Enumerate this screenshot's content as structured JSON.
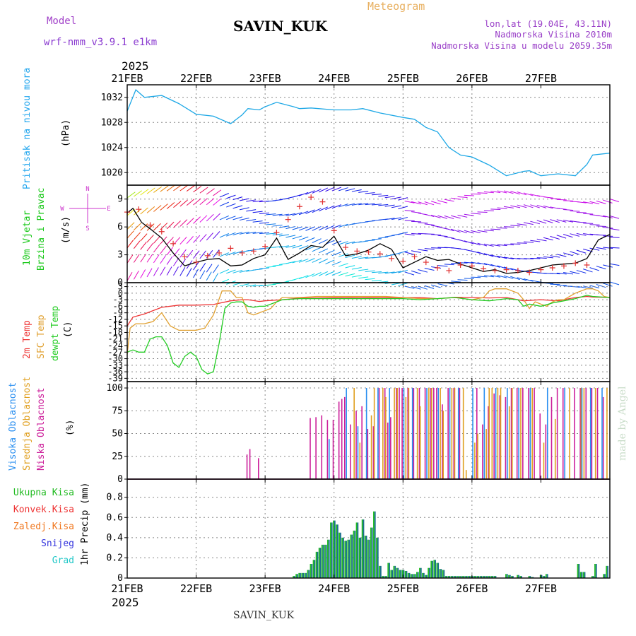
{
  "header": {
    "model_label": "Model",
    "model_name": "wrf-nmm_v3.9.1  e1km",
    "station": "SAVIN_KUK",
    "product": "Meteogram",
    "lonlat": "lon,lat (19.04E, 43.11N)",
    "altitude": "Nadmorska Visina 2010m",
    "altitude_model": "Nadmorska Visina u modelu 2059.35m",
    "footer_station": "SAVIN_KUK",
    "credit": "made by Angel"
  },
  "colors": {
    "pressure": "#1ea8e6",
    "pressure_label": "#22a6ee",
    "wind_speed_line": "#000000",
    "wind_obs_marker": "#e03030",
    "wind_label": "#18c818",
    "wind_dir_legend": "#cc33cc",
    "temp_2m": "#ee3333",
    "temp_sfc": "#e0a030",
    "temp_dew": "#22cc22",
    "cloud_high": "#2a8ff0",
    "cloud_mid": "#e0a020",
    "cloud_low": "#cc1f9a",
    "precip_total": "#22bb22",
    "precip_conv": "#ee3333",
    "precip_frz": "#f07820",
    "precip_snow": "#3333dd",
    "precip_grad": "#22c8c8",
    "axis": "#000000",
    "grid": "#888888"
  },
  "x_axis": {
    "year": "2025",
    "ticks": [
      "21FEB",
      "22FEB",
      "23FEB",
      "24FEB",
      "25FEB",
      "26FEB",
      "27FEB"
    ]
  },
  "labels": {
    "pressure": "Pritisak na nivou mora",
    "pressure_unit": "(hPa)",
    "wind_1": "10m Vjetar",
    "wind_2": "Brzina i Pravac",
    "wind_unit": "(m/s)",
    "wind_compass": [
      "N",
      "W",
      "E",
      "S"
    ],
    "temp_2m": "2m Temp",
    "temp_sfc": "SFC Temp",
    "temp_dew": "dewpt Temp",
    "temp_unit": "(C)",
    "cloud_high": "Visoka Oblacnost",
    "cloud_mid": "Srednja Oblacnost",
    "cloud_low": "Niska Oblacnost",
    "cloud_unit": "(%)",
    "precip_total": "Ukupna Kisa",
    "precip_conv": "Konvek.Kisa",
    "precip_frz": "Zaledj.Kisa",
    "precip_snow": "Snijeg",
    "precip_grad": "Grad",
    "precip_unit": "1hr Precip (mm)"
  },
  "chart_data": [
    {
      "type": "line",
      "panel": "pressure",
      "x_unit": "hours since 21FEB 00",
      "ylim": [
        1018,
        1034
      ],
      "yticks": [
        1020,
        1024,
        1028,
        1032
      ],
      "series": [
        {
          "name": "Pritisak na nivou mora",
          "x": [
            0,
            3,
            6,
            12,
            18,
            24,
            30,
            36,
            40,
            42,
            46,
            48,
            52,
            58,
            60,
            64,
            72,
            78,
            82,
            88,
            96,
            100,
            104,
            108,
            112,
            116,
            120,
            126,
            132,
            138,
            140,
            144,
            150,
            156,
            160,
            162,
            168
          ],
          "values": [
            1029.8,
            1033.2,
            1032.0,
            1032.3,
            1031.0,
            1029.3,
            1029.0,
            1027.8,
            1029.2,
            1030.2,
            1030.0,
            1030.5,
            1031.2,
            1030.5,
            1030.2,
            1030.3,
            1030.0,
            1030.0,
            1030.2,
            1029.5,
            1028.8,
            1028.5,
            1027.2,
            1026.5,
            1024.0,
            1022.8,
            1022.5,
            1021.2,
            1019.5,
            1020.2,
            1020.3,
            1019.5,
            1019.8,
            1019.5,
            1021.3,
            1022.8,
            1023.1
          ]
        }
      ]
    },
    {
      "type": "line",
      "panel": "wind",
      "ylim": [
        0,
        10.5
      ],
      "yticks": [
        0,
        3,
        6,
        9
      ],
      "series": [
        {
          "name": "speed",
          "x": [
            0,
            2,
            5,
            8,
            12,
            16,
            20,
            24,
            28,
            32,
            36,
            40,
            44,
            48,
            52,
            56,
            60,
            64,
            68,
            72,
            76,
            80,
            84,
            88,
            92,
            96,
            100,
            104,
            108,
            112,
            116,
            120,
            124,
            128,
            132,
            136,
            140,
            144,
            148,
            152,
            156,
            160,
            164,
            168
          ],
          "values": [
            7.5,
            8.0,
            6.5,
            5.8,
            4.8,
            3.2,
            1.8,
            2.2,
            2.5,
            2.6,
            1.8,
            1.9,
            2.6,
            3.0,
            4.8,
            2.5,
            3.2,
            4.0,
            3.8,
            5.0,
            2.9,
            3.1,
            3.5,
            4.2,
            3.6,
            1.6,
            2.2,
            2.8,
            2.4,
            2.5,
            2.0,
            1.6,
            1.2,
            1.4,
            1.0,
            1.1,
            1.3,
            1.6,
            1.9,
            2.0,
            2.1,
            2.6,
            4.6,
            5.2
          ]
        },
        {
          "name": "obs",
          "x": [
            0,
            4,
            8,
            12,
            16,
            20,
            24,
            28,
            32,
            36,
            40,
            44,
            48,
            52,
            56,
            60,
            64,
            68,
            72,
            76,
            80,
            84,
            88,
            92,
            96,
            100,
            104,
            108,
            112,
            116,
            120,
            124,
            128,
            132,
            136,
            140,
            144,
            148,
            152,
            156,
            160
          ],
          "values": [
            7.6,
            7.9,
            6.2,
            5.5,
            4.2,
            2.8,
            2.2,
            2.9,
            3.2,
            3.7,
            3.2,
            3.4,
            3.9,
            5.4,
            6.8,
            8.2,
            9.2,
            8.7,
            5.6,
            3.8,
            3.4,
            3.3,
            3.1,
            2.6,
            2.3,
            2.8,
            2.2,
            1.6,
            1.3,
            1.9,
            1.8,
            1.5,
            1.3,
            1.4,
            1.3,
            1.1,
            1.4,
            1.6,
            1.8,
            2.1,
            1.9
          ]
        }
      ]
    },
    {
      "type": "line",
      "panel": "temperature",
      "ylim": [
        -40.5,
        4.8
      ],
      "yticks": [
        3,
        0,
        -3,
        -6,
        -9,
        -12,
        -15,
        -18,
        -21,
        -24,
        -27,
        -30,
        -33,
        -36,
        -39
      ],
      "series": [
        {
          "name": "2m Temp",
          "x": [
            0,
            2,
            6,
            12,
            18,
            24,
            30,
            36,
            40,
            42,
            46,
            48,
            54,
            60,
            66,
            72,
            78,
            84,
            90,
            96,
            102,
            108,
            114,
            120,
            126,
            132,
            138,
            144,
            150,
            156,
            160,
            162,
            168
          ],
          "values": [
            -15,
            -11,
            -9.5,
            -6.5,
            -5.5,
            -5.5,
            -5.2,
            -3.5,
            -3.0,
            -3.0,
            -3.8,
            -3.5,
            -3.0,
            -2.3,
            -2.2,
            -2.1,
            -2.0,
            -2.1,
            -2.0,
            -2.1,
            -2.0,
            -2.5,
            -1.9,
            -2.0,
            -2.2,
            -2.0,
            -3.5,
            -3.0,
            -3.5,
            -2.0,
            -1.5,
            -1.8,
            -2.0
          ]
        },
        {
          "name": "SFC Temp",
          "x": [
            0,
            1,
            3,
            6,
            9,
            12,
            15,
            18,
            21,
            24,
            27,
            30,
            33,
            36,
            38,
            40,
            42,
            44,
            46,
            48,
            50,
            52,
            54,
            60,
            66,
            72,
            78,
            84,
            90,
            96,
            102,
            108,
            114,
            120,
            124,
            126,
            128,
            132,
            136,
            138,
            140,
            142,
            144,
            146,
            148,
            150,
            152,
            156,
            160,
            162,
            164,
            166,
            168
          ],
          "values": [
            -28,
            -16,
            -14,
            -14,
            -13,
            -9,
            -15,
            -17,
            -17,
            -17,
            -16,
            -10,
            1,
            1,
            -2,
            -2,
            -9,
            -10,
            -9,
            -8,
            -7,
            -4,
            -2,
            -2,
            -1.5,
            -1.5,
            -1.5,
            -1.5,
            -1.5,
            -2.0,
            -2.5,
            -2.5,
            -2.0,
            -3.0,
            -2.0,
            1,
            2,
            2,
            0,
            -3.0,
            -7.0,
            -4.0,
            -5.0,
            -6.0,
            -4.0,
            -3.0,
            -3.0,
            0,
            2,
            2,
            1,
            -1.5,
            -2.0
          ]
        },
        {
          "name": "dewpt Temp",
          "x": [
            0,
            2,
            4,
            6,
            8,
            10,
            12,
            14,
            16,
            18,
            20,
            22,
            24,
            26,
            28,
            30,
            32,
            34,
            36,
            38,
            40,
            42,
            44,
            46,
            48,
            54,
            60,
            66,
            72,
            78,
            84,
            90,
            96,
            102,
            108,
            114,
            120,
            126,
            132,
            136,
            138,
            140,
            144,
            148,
            152,
            156,
            160,
            162,
            168
          ],
          "values": [
            -27,
            -26,
            -27,
            -27,
            -21,
            -20,
            -20,
            -24,
            -32,
            -34,
            -29,
            -27,
            -29,
            -35,
            -37,
            -36,
            -23,
            -7,
            -4.5,
            -4.0,
            -4.0,
            -6,
            -6.5,
            -6,
            -6,
            -3,
            -2.5,
            -2.5,
            -2.5,
            -2.5,
            -2.5,
            -2.5,
            -2.5,
            -3.0,
            -2.5,
            -2.0,
            -3.0,
            -3.5,
            -2.5,
            -3.0,
            -6.0,
            -5.0,
            -6.0,
            -4.5,
            -3.5,
            -2.5,
            -1.0,
            -1.5,
            -2.0
          ]
        }
      ]
    },
    {
      "type": "bar",
      "panel": "clouds",
      "ylim": [
        0,
        107
      ],
      "yticks": [
        0,
        25,
        50,
        75,
        100
      ],
      "series": [
        {
          "name": "Niska Oblacnost",
          "x": [
            42,
            43,
            46,
            64,
            66,
            68,
            70,
            72,
            74,
            75,
            76,
            78,
            80,
            82,
            84,
            86,
            88,
            90,
            91,
            92,
            94,
            95,
            96,
            98,
            100,
            102,
            104,
            106,
            107,
            108,
            110,
            112,
            114,
            116,
            122,
            124,
            126,
            128,
            130,
            132,
            134,
            136,
            138,
            140,
            142,
            144,
            146,
            148,
            150,
            152,
            156,
            158,
            160,
            162,
            164,
            166
          ],
          "values": [
            27,
            33,
            23,
            67,
            68,
            70,
            65,
            65,
            85,
            88,
            90,
            60,
            75,
            80,
            55,
            58,
            100,
            100,
            62,
            68,
            100,
            100,
            100,
            100,
            100,
            100,
            100,
            100,
            100,
            100,
            82,
            100,
            100,
            100,
            100,
            60,
            80,
            94,
            92,
            90,
            100,
            100,
            100,
            100,
            100,
            72,
            60,
            90,
            100,
            100,
            100,
            100,
            100,
            100,
            100,
            90
          ]
        },
        {
          "name": "Srednja Oblacnost",
          "x": [
            79,
            81,
            85,
            86,
            89,
            90,
            93,
            94,
            97,
            98,
            101,
            102,
            105,
            106,
            109,
            110,
            113,
            114,
            117,
            118,
            121,
            122,
            125,
            126,
            127,
            129,
            130,
            133,
            134,
            137,
            141,
            145,
            149,
            154,
            158,
            159,
            163,
            167
          ],
          "values": [
            100,
            40,
            70,
            100,
            100,
            90,
            100,
            100,
            90,
            100,
            100,
            80,
            100,
            100,
            100,
            75,
            100,
            100,
            100,
            10,
            40,
            50,
            55,
            100,
            100,
            100,
            100,
            80,
            100,
            100,
            100,
            40,
            66,
            100,
            100,
            100,
            100,
            100
          ]
        },
        {
          "name": "Visoka Oblacnost",
          "x": [
            70,
            76,
            80,
            83,
            87,
            91,
            96,
            99,
            104,
            108,
            112,
            115,
            120,
            124,
            128,
            132,
            136,
            140,
            146,
            152,
            158,
            161,
            165
          ],
          "values": [
            44,
            100,
            58,
            100,
            100,
            100,
            100,
            100,
            100,
            100,
            100,
            100,
            100,
            100,
            100,
            100,
            100,
            100,
            100,
            100,
            100,
            100,
            100
          ]
        }
      ]
    },
    {
      "type": "bar",
      "panel": "precipitation",
      "ylim": [
        0,
        0.98
      ],
      "yticks": [
        0,
        0.2,
        0.4,
        0.6,
        0.8
      ],
      "series": [
        {
          "name": "Ukupna Kisa",
          "x": [
            58,
            59,
            60,
            61,
            62,
            63,
            64,
            65,
            66,
            67,
            68,
            69,
            70,
            71,
            72,
            73,
            74,
            75,
            76,
            77,
            78,
            79,
            80,
            81,
            82,
            83,
            84,
            85,
            86,
            87,
            88,
            89,
            90,
            91,
            92,
            93,
            94,
            95,
            96,
            97,
            98,
            99,
            100,
            101,
            102,
            103,
            104,
            105,
            106,
            107,
            108,
            109,
            110,
            111,
            112,
            113,
            114,
            115,
            116,
            117,
            118,
            119,
            120,
            121,
            122,
            123,
            124,
            125,
            126,
            127,
            128,
            132,
            133,
            134,
            136,
            137,
            140,
            141,
            144,
            145,
            146,
            157,
            158,
            159,
            162,
            163,
            166,
            167
          ],
          "values": [
            0.02,
            0.04,
            0.05,
            0.05,
            0.05,
            0.08,
            0.14,
            0.18,
            0.26,
            0.3,
            0.33,
            0.33,
            0.38,
            0.55,
            0.57,
            0.53,
            0.45,
            0.4,
            0.37,
            0.38,
            0.43,
            0.47,
            0.55,
            0.4,
            0.58,
            0.42,
            0.38,
            0.5,
            0.66,
            0.4,
            0.12,
            0.02,
            0.02,
            0.15,
            0.08,
            0.12,
            0.1,
            0.08,
            0.08,
            0.07,
            0.05,
            0.04,
            0.04,
            0.06,
            0.1,
            0.05,
            0.03,
            0.1,
            0.17,
            0.18,
            0.15,
            0.09,
            0.08,
            0.02,
            0.02,
            0.02,
            0.02,
            0.02,
            0.02,
            0.02,
            0.02,
            0.02,
            0.02,
            0.02,
            0.02,
            0.02,
            0.02,
            0.02,
            0.02,
            0.02,
            0.02,
            0.04,
            0.03,
            0.02,
            0.03,
            0.02,
            0.02,
            0.01,
            0.03,
            0.02,
            0.04,
            0.14,
            0.06,
            0.06,
            0.02,
            0.14,
            0.04,
            0.12
          ]
        }
      ]
    }
  ]
}
